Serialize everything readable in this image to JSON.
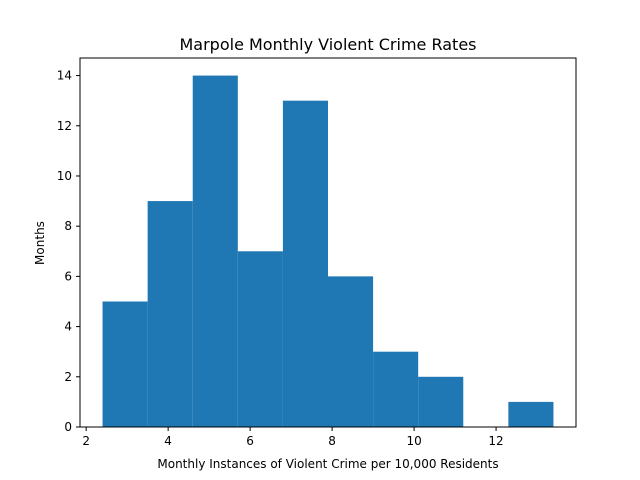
{
  "chart_data": {
    "type": "bar",
    "title": "Marpole Monthly Violent Crime Rates",
    "xlabel": "Monthly Instances of Violent Crime per 10,000 Residents",
    "ylabel": "Months",
    "bin_edges": [
      2.4,
      3.5,
      4.6,
      5.7,
      6.8,
      7.9,
      9.0,
      10.1,
      11.2,
      12.3,
      13.4
    ],
    "values": [
      5,
      9,
      14,
      7,
      13,
      6,
      3,
      2,
      0,
      1
    ],
    "xlim": [
      1.85,
      13.95
    ],
    "ylim": [
      0,
      14.7
    ],
    "xticks": [
      2,
      4,
      6,
      8,
      10,
      12
    ],
    "yticks": [
      0,
      2,
      4,
      6,
      8,
      10,
      12,
      14
    ],
    "bar_color": "#1f77b4",
    "grid": false
  }
}
